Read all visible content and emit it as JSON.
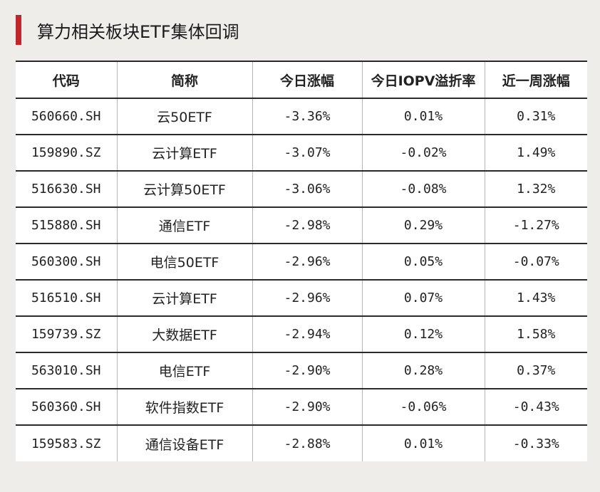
{
  "title": "算力相关板块ETF集体回调",
  "colors": {
    "accent": "#c0272d",
    "background": "#efedea",
    "table_background": "#ffffff"
  },
  "table": {
    "headers": [
      "代码",
      "简称",
      "今日涨幅",
      "今日IOPV溢折率",
      "近一周涨幅"
    ],
    "rows": [
      [
        "560660.SH",
        "云50ETF",
        "-3.36%",
        "0.01%",
        "0.31%"
      ],
      [
        "159890.SZ",
        "云计算ETF",
        "-3.07%",
        "-0.02%",
        "1.49%"
      ],
      [
        "516630.SH",
        "云计算50ETF",
        "-3.06%",
        "-0.08%",
        "1.32%"
      ],
      [
        "515880.SH",
        "通信ETF",
        "-2.98%",
        "0.29%",
        "-1.27%"
      ],
      [
        "560300.SH",
        "电信50ETF",
        "-2.96%",
        "0.05%",
        "-0.07%"
      ],
      [
        "516510.SH",
        "云计算ETF",
        "-2.96%",
        "0.07%",
        "1.43%"
      ],
      [
        "159739.SZ",
        "大数据ETF",
        "-2.94%",
        "0.12%",
        "1.58%"
      ],
      [
        "563010.SH",
        "电信ETF",
        "-2.90%",
        "0.28%",
        "0.37%"
      ],
      [
        "560360.SH",
        "软件指数ETF",
        "-2.90%",
        "-0.06%",
        "-0.43%"
      ],
      [
        "159583.SZ",
        "通信设备ETF",
        "-2.88%",
        "0.01%",
        "-0.33%"
      ]
    ]
  }
}
